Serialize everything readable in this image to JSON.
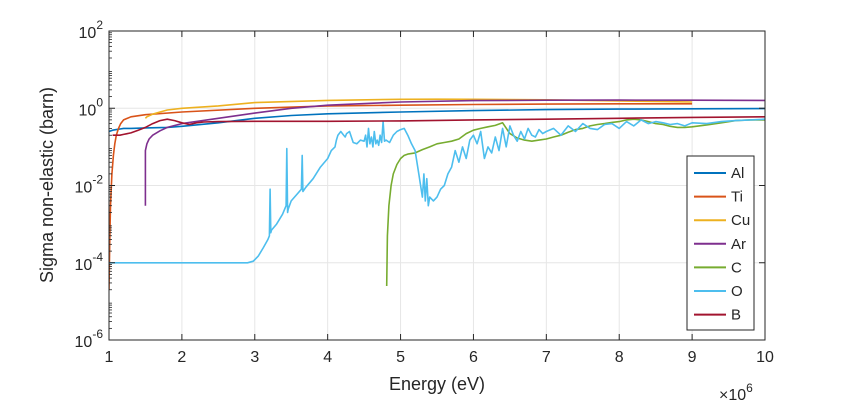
{
  "chart_data": {
    "type": "line",
    "title": "",
    "xlabel": "Energy (eV)",
    "ylabel": "Sigma non-elastic (barn)",
    "x_scale_label": "×10",
    "x_scale_exponent": "6",
    "x_multiplier": 1000000,
    "xlim": [
      1000000,
      10000000
    ],
    "ylim": [
      1e-06,
      100
    ],
    "yscale": "log",
    "grid": true,
    "legend_position": "right",
    "x_tick_values": [
      1,
      2,
      3,
      4,
      5,
      6,
      7,
      8,
      9,
      10
    ],
    "x_tick_labels": [
      "1",
      "2",
      "3",
      "4",
      "5",
      "6",
      "7",
      "8",
      "9",
      "10"
    ],
    "y_ticks": [
      {
        "value": 100,
        "base": "10",
        "exp": "2"
      },
      {
        "value": 1,
        "base": "10",
        "exp": "0"
      },
      {
        "value": 0.01,
        "base": "10",
        "exp": "-2"
      },
      {
        "value": 0.0001,
        "base": "10",
        "exp": "-4"
      },
      {
        "value": 1e-06,
        "base": "10",
        "exp": "-6"
      }
    ],
    "series": [
      {
        "name": "Al",
        "color": "#0072BD",
        "x": [
          1.0,
          1.05,
          1.1,
          1.15,
          1.2,
          1.3,
          1.5,
          1.8,
          2.0,
          2.5,
          3.0,
          3.5,
          4.0,
          5.0,
          6.0,
          7.0,
          8.0,
          9.0,
          10.0
        ],
        "y": [
          0.25,
          0.27,
          0.28,
          0.29,
          0.3,
          0.3,
          0.31,
          0.32,
          0.34,
          0.42,
          0.55,
          0.65,
          0.72,
          0.8,
          0.87,
          0.92,
          0.95,
          0.97,
          0.98
        ]
      },
      {
        "name": "Ti",
        "color": "#D95319",
        "x": [
          1.0,
          1.01,
          1.02,
          1.04,
          1.06,
          1.08,
          1.1,
          1.13,
          1.16,
          1.2,
          1.3,
          1.5,
          2.0,
          3.0,
          4.0,
          5.0,
          6.0,
          7.0,
          8.0,
          9.0
        ],
        "y": [
          2e-05,
          0.0003,
          0.003,
          0.02,
          0.06,
          0.12,
          0.2,
          0.3,
          0.4,
          0.5,
          0.6,
          0.68,
          0.8,
          1.0,
          1.15,
          1.2,
          1.25,
          1.28,
          1.3,
          1.3
        ]
      },
      {
        "name": "Cu",
        "color": "#EDB120",
        "x": [
          1.5,
          1.52,
          1.6,
          1.7,
          1.8,
          2.0,
          2.5,
          3.0,
          4.0,
          5.0,
          5.5,
          6.0,
          7.0,
          8.0,
          9.0
        ],
        "y": [
          0.55,
          0.6,
          0.7,
          0.8,
          0.9,
          1.0,
          1.15,
          1.4,
          1.6,
          1.7,
          1.72,
          1.7,
          1.65,
          1.55,
          1.45
        ]
      },
      {
        "name": "Ar",
        "color": "#7E2F8E",
        "x": [
          1.5,
          1.5,
          1.52,
          1.55,
          1.6,
          1.7,
          1.8,
          2.0,
          2.5,
          3.0,
          3.5,
          4.0,
          5.0,
          6.0,
          7.0,
          8.0,
          9.0,
          10.0
        ],
        "y": [
          0.003,
          0.08,
          0.12,
          0.16,
          0.2,
          0.26,
          0.32,
          0.4,
          0.55,
          0.75,
          1.0,
          1.2,
          1.45,
          1.58,
          1.62,
          1.63,
          1.62,
          1.6
        ]
      },
      {
        "name": "C",
        "color": "#77AC30",
        "x": [
          4.81,
          4.82,
          4.84,
          4.87,
          4.9,
          4.95,
          5.0,
          5.05,
          5.1,
          5.2,
          5.3,
          5.4,
          5.5,
          5.6,
          5.7,
          5.8,
          5.9,
          6.0,
          6.1,
          6.2,
          6.3,
          6.4,
          6.5,
          6.6,
          6.7,
          6.8,
          6.9,
          7.0,
          7.1,
          7.2,
          7.3,
          7.4,
          7.5,
          7.6,
          7.7,
          7.8,
          7.9,
          8.0,
          8.1,
          8.2,
          8.3,
          8.4,
          8.5,
          8.6,
          8.7,
          8.8,
          8.9,
          9.0,
          9.2,
          9.4,
          9.6,
          9.8,
          10.0
        ],
        "y": [
          2.5e-05,
          0.0005,
          0.003,
          0.01,
          0.02,
          0.035,
          0.05,
          0.06,
          0.065,
          0.07,
          0.085,
          0.1,
          0.12,
          0.13,
          0.14,
          0.16,
          0.22,
          0.27,
          0.3,
          0.33,
          0.36,
          0.42,
          0.22,
          0.17,
          0.15,
          0.14,
          0.15,
          0.16,
          0.18,
          0.2,
          0.24,
          0.28,
          0.3,
          0.35,
          0.38,
          0.4,
          0.43,
          0.45,
          0.5,
          0.52,
          0.5,
          0.45,
          0.4,
          0.38,
          0.34,
          0.32,
          0.32,
          0.33,
          0.37,
          0.42,
          0.48,
          0.5,
          0.5
        ]
      },
      {
        "name": "O",
        "color": "#4DBEEE",
        "x": [
          1.0,
          2.0,
          2.9,
          2.98,
          3.05,
          3.12,
          3.18,
          3.2,
          3.21,
          3.22,
          3.23,
          3.3,
          3.38,
          3.43,
          3.44,
          3.45,
          3.46,
          3.5,
          3.58,
          3.64,
          3.65,
          3.66,
          3.7,
          3.8,
          3.9,
          4.0,
          4.05,
          4.1,
          4.12,
          4.14,
          4.18,
          4.22,
          4.24,
          4.26,
          4.3,
          4.35,
          4.4,
          4.45,
          4.5,
          4.52,
          4.54,
          4.56,
          4.58,
          4.6,
          4.62,
          4.64,
          4.66,
          4.68,
          4.7,
          4.72,
          4.74,
          4.76,
          4.78,
          4.8,
          4.85,
          4.9,
          4.95,
          5.0,
          5.05,
          5.1,
          5.15,
          5.2,
          5.25,
          5.3,
          5.32,
          5.34,
          5.36,
          5.38,
          5.4,
          5.45,
          5.5,
          5.55,
          5.6,
          5.65,
          5.7,
          5.75,
          5.8,
          5.85,
          5.9,
          5.95,
          6.0,
          6.05,
          6.1,
          6.15,
          6.2,
          6.25,
          6.3,
          6.35,
          6.4,
          6.45,
          6.5,
          6.55,
          6.6,
          6.65,
          6.7,
          6.75,
          6.8,
          6.85,
          6.9,
          6.95,
          7.0,
          7.1,
          7.2,
          7.3,
          7.4,
          7.5,
          7.6,
          7.7,
          7.8,
          7.9,
          8.0,
          8.1,
          8.2,
          8.3,
          8.4,
          8.5,
          8.6,
          8.7,
          8.8,
          8.9,
          9.0,
          9.2,
          9.4,
          9.6,
          9.8,
          10.0
        ],
        "y": [
          0.0001,
          0.0001,
          0.0001,
          0.00011,
          0.00015,
          0.00025,
          0.0004,
          0.0005,
          0.008,
          0.0006,
          0.0007,
          0.001,
          0.0018,
          0.003,
          0.09,
          0.002,
          0.0025,
          0.004,
          0.006,
          0.008,
          0.06,
          0.007,
          0.009,
          0.015,
          0.03,
          0.05,
          0.08,
          0.1,
          0.15,
          0.2,
          0.25,
          0.2,
          0.18,
          0.22,
          0.25,
          0.13,
          0.12,
          0.15,
          0.14,
          0.2,
          0.1,
          0.3,
          0.12,
          0.18,
          0.1,
          0.25,
          0.12,
          0.15,
          0.11,
          0.2,
          0.13,
          0.45,
          0.14,
          0.15,
          0.13,
          0.2,
          0.25,
          0.28,
          0.3,
          0.2,
          0.12,
          0.08,
          0.02,
          0.005,
          0.02,
          0.004,
          0.015,
          0.003,
          0.005,
          0.004,
          0.005,
          0.008,
          0.01,
          0.02,
          0.03,
          0.08,
          0.04,
          0.1,
          0.05,
          0.15,
          0.2,
          0.12,
          0.25,
          0.05,
          0.1,
          0.07,
          0.18,
          0.08,
          0.3,
          0.1,
          0.35,
          0.2,
          0.14,
          0.25,
          0.16,
          0.3,
          0.2,
          0.18,
          0.28,
          0.22,
          0.25,
          0.3,
          0.2,
          0.35,
          0.25,
          0.4,
          0.3,
          0.28,
          0.38,
          0.4,
          0.3,
          0.45,
          0.35,
          0.5,
          0.4,
          0.45,
          0.42,
          0.38,
          0.4,
          0.35,
          0.42,
          0.4,
          0.45,
          0.48,
          0.5,
          0.52
        ]
      },
      {
        "name": "B",
        "color": "#A2142F",
        "x": [
          1.05,
          1.1,
          1.15,
          1.2,
          1.3,
          1.4,
          1.5,
          1.6,
          1.7,
          1.8,
          1.9,
          2.0,
          2.1,
          2.2,
          2.3,
          2.5,
          3.0,
          3.5,
          4.0,
          5.0,
          6.0,
          7.0,
          8.0,
          9.0,
          10.0
        ],
        "y": [
          0.2,
          0.2,
          0.2,
          0.21,
          0.23,
          0.27,
          0.32,
          0.4,
          0.48,
          0.52,
          0.48,
          0.42,
          0.38,
          0.42,
          0.44,
          0.45,
          0.46,
          0.46,
          0.46,
          0.47,
          0.5,
          0.52,
          0.55,
          0.58,
          0.6
        ]
      }
    ]
  }
}
